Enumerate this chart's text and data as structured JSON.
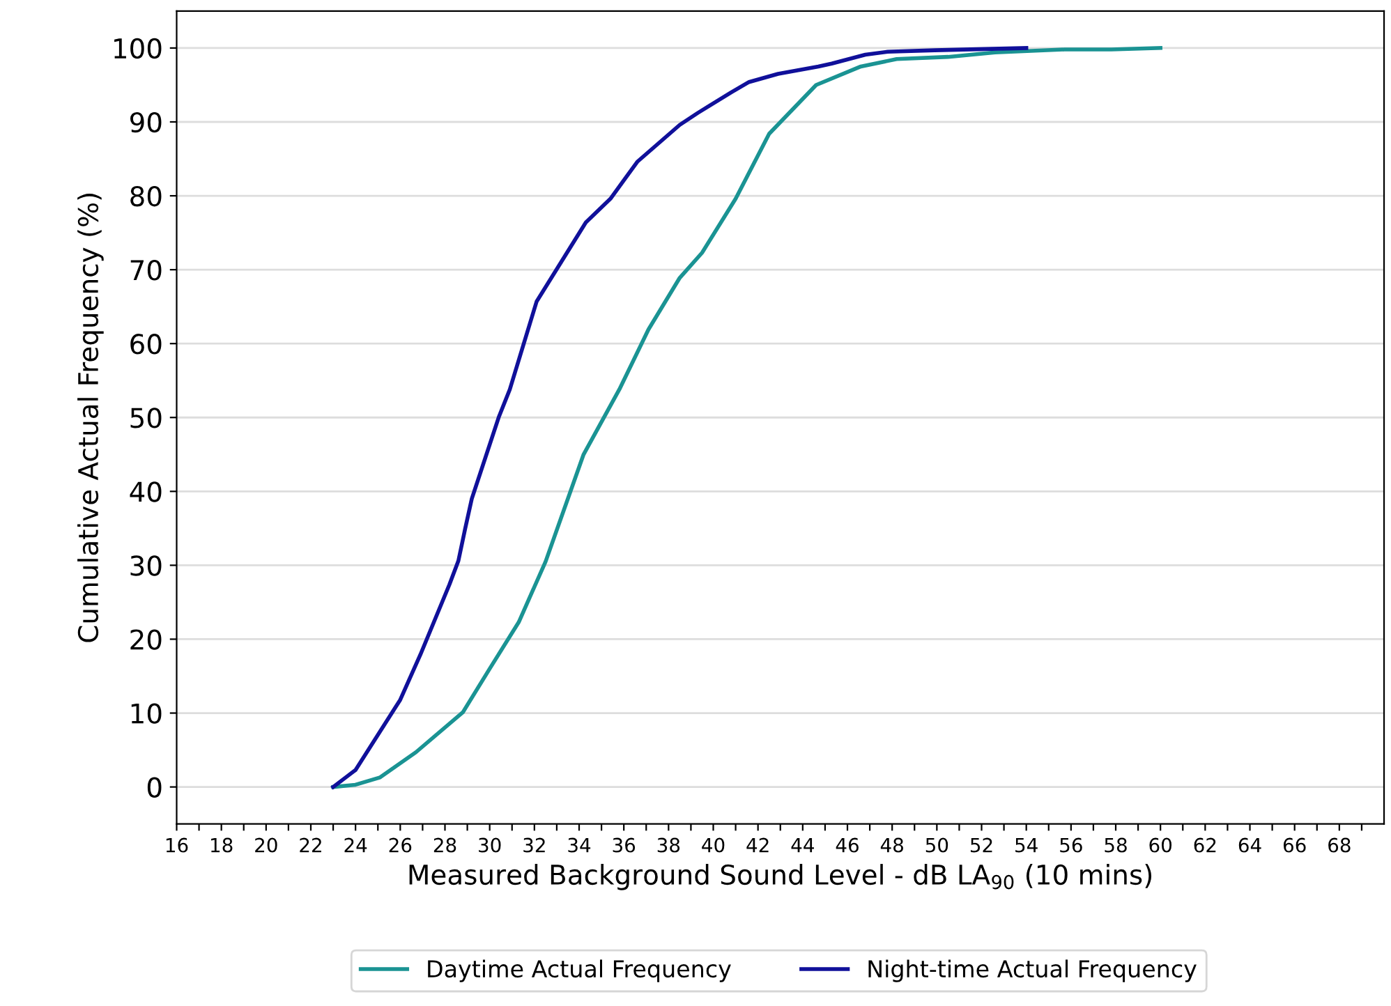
{
  "chart_data": {
    "type": "line",
    "xlabel": "Measured Background Sound Level - dB LA$_{90}$ (10 mins)",
    "ylabel": "Cumulative Actual Frequency (%)",
    "series": [
      {
        "name": "Daytime Actual Frequency",
        "color": "#1a9393",
        "x": [
          23.0,
          24.0,
          25.1,
          26.7,
          28.8,
          30.0,
          31.3,
          32.5,
          34.2,
          35.8,
          37.1,
          38.5,
          39.5,
          41.0,
          42.5,
          44.6,
          46.6,
          48.2,
          50.5,
          52.6,
          55.7,
          57.8,
          60.0
        ],
        "values": [
          0,
          0.3,
          1.3,
          4.7,
          10.1,
          16,
          22.3,
          30.5,
          45,
          53.8,
          61.9,
          68.9,
          72.3,
          79.6,
          88.4,
          95,
          97.5,
          98.5,
          98.8,
          99.4,
          99.8,
          99.8,
          100
        ]
      },
      {
        "name": "Night-time Actual Frequency",
        "color": "#10109a",
        "x": [
          23.0,
          24.0,
          26.0,
          26.9,
          28.2,
          28.6,
          28.9,
          29.2,
          30.4,
          30.9,
          32.1,
          34.3,
          35.4,
          36.6,
          38.5,
          39.3,
          40.8,
          41.6,
          42.9,
          44.7,
          45.3,
          46.8,
          47.8,
          49.9,
          54.0
        ],
        "values": [
          0,
          2.3,
          11.8,
          17.9,
          27.4,
          30.6,
          34.9,
          39,
          50,
          53.8,
          65.7,
          76.4,
          79.6,
          84.6,
          89.6,
          91.2,
          94,
          95.4,
          96.5,
          97.5,
          97.9,
          99.1,
          99.5,
          99.7,
          100
        ]
      }
    ],
    "xlim": [
      16,
      70
    ],
    "xticks": [
      16,
      {
        "value": 17,
        "label": null
      },
      18,
      {
        "value": 19,
        "label": null
      },
      20,
      {
        "value": 21,
        "label": null
      },
      22,
      {
        "value": 23,
        "label": null
      },
      24,
      {
        "value": 25,
        "label": null
      },
      26,
      {
        "value": 27,
        "label": null
      },
      28,
      {
        "value": 29,
        "label": null
      },
      30,
      {
        "value": 31,
        "label": null
      },
      32,
      {
        "value": 33,
        "label": null
      },
      34,
      {
        "value": 35,
        "label": null
      },
      36,
      {
        "value": 37,
        "label": null
      },
      38,
      {
        "value": 39,
        "label": null
      },
      40,
      {
        "value": 41,
        "label": null
      },
      42,
      {
        "value": 43,
        "label": null
      },
      44,
      {
        "value": 45,
        "label": null
      },
      46,
      {
        "value": 47,
        "label": null
      },
      48,
      {
        "value": 49,
        "label": null
      },
      50,
      {
        "value": 51,
        "label": null
      },
      52,
      {
        "value": 53,
        "label": null
      },
      54,
      {
        "value": 55,
        "label": null
      },
      56,
      {
        "value": 57,
        "label": null
      },
      58,
      {
        "value": 59,
        "label": null
      },
      60,
      {
        "value": 61,
        "label": null
      },
      62,
      {
        "value": 63,
        "label": null
      },
      64,
      {
        "value": 65,
        "label": null
      },
      66,
      {
        "value": 67,
        "label": null
      },
      68,
      {
        "value": 69,
        "label": null
      }
    ],
    "ylim": [
      -5,
      105
    ],
    "yticks": [
      0,
      10,
      20,
      30,
      40,
      50,
      60,
      70,
      80,
      90,
      100
    ],
    "grid": "y",
    "legend": "bottom",
    "marker": "none",
    "line_style": "solid"
  }
}
